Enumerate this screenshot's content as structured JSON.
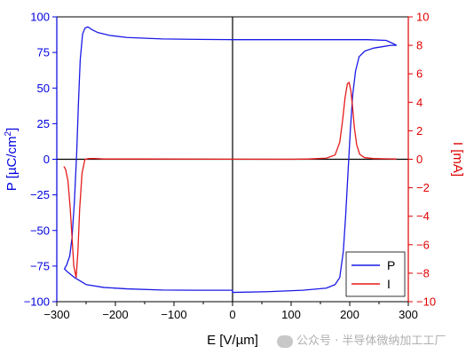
{
  "chart_data": {
    "type": "line",
    "x_axis": {
      "label": "E [V/µm]",
      "range": [
        -300,
        300
      ],
      "ticks": [
        -300,
        -200,
        -100,
        0,
        100,
        200,
        300
      ],
      "tick_labels": [
        "−300",
        "−200",
        "−100",
        "0",
        "100",
        "200",
        "300"
      ]
    },
    "y_left": {
      "label_main": "P [µC/cm",
      "label_sup": "2",
      "label_end": "]",
      "range": [
        -100,
        100
      ],
      "ticks": [
        -100,
        -75,
        -50,
        -25,
        0,
        25,
        50,
        75,
        100
      ],
      "tick_labels": [
        "−100",
        "−75",
        "−50",
        "−25",
        "0",
        "25",
        "50",
        "75",
        "100"
      ],
      "color": "#0000e0"
    },
    "y_right": {
      "label": "I [mA]",
      "range": [
        -10,
        10
      ],
      "ticks": [
        -10,
        -8,
        -6,
        -4,
        -2,
        0,
        2,
        4,
        6,
        8,
        10
      ],
      "tick_labels": [
        "−10",
        "−8",
        "−6",
        "−4",
        "−2",
        "0",
        "2",
        "4",
        "6",
        "8",
        "10"
      ],
      "color": "#e00000"
    },
    "series": [
      {
        "name": "P",
        "axis": "left",
        "color": "#1a1ae6",
        "points": [
          [
            280,
            80
          ],
          [
            270,
            82
          ],
          [
            262,
            83.5
          ],
          [
            230,
            84
          ],
          [
            180,
            84
          ],
          [
            120,
            84
          ],
          [
            60,
            84
          ],
          [
            0,
            84
          ],
          [
            -60,
            84.2
          ],
          [
            -120,
            84.5
          ],
          [
            -180,
            85.5
          ],
          [
            -210,
            87
          ],
          [
            -230,
            89
          ],
          [
            -240,
            91
          ],
          [
            -247,
            93
          ],
          [
            -252,
            92
          ],
          [
            -256,
            88
          ],
          [
            -260,
            70
          ],
          [
            -263,
            40
          ],
          [
            -266,
            5
          ],
          [
            -270,
            -30
          ],
          [
            -274,
            -55
          ],
          [
            -278,
            -68
          ],
          [
            -283,
            -74
          ],
          [
            -287,
            -77
          ],
          [
            -282,
            -79
          ],
          [
            -270,
            -83
          ],
          [
            -250,
            -88
          ],
          [
            -220,
            -90
          ],
          [
            -180,
            -91
          ],
          [
            -120,
            -91.8
          ],
          [
            -60,
            -92
          ],
          [
            0,
            -92
          ],
          [
            0,
            -93.5
          ],
          [
            60,
            -93
          ],
          [
            120,
            -92
          ],
          [
            160,
            -90.5
          ],
          [
            175,
            -88
          ],
          [
            183,
            -83
          ],
          [
            189,
            -65
          ],
          [
            193,
            -40
          ],
          [
            197,
            -10
          ],
          [
            201,
            20
          ],
          [
            205,
            45
          ],
          [
            210,
            62
          ],
          [
            216,
            72
          ],
          [
            226,
            76
          ],
          [
            240,
            78
          ],
          [
            255,
            79
          ],
          [
            270,
            80
          ],
          [
            280,
            80
          ]
        ]
      },
      {
        "name": "I",
        "axis": "right",
        "color": "#e61a1a",
        "points": [
          [
            -288,
            -0.5
          ],
          [
            -285,
            -0.7
          ],
          [
            -281,
            -1.5
          ],
          [
            -277,
            -3.5
          ],
          [
            -274,
            -5.5
          ],
          [
            -271,
            -7.5
          ],
          [
            -267,
            -8.3
          ],
          [
            -264,
            -6.5
          ],
          [
            -261,
            -3.5
          ],
          [
            -257,
            -1
          ],
          [
            -252,
            0
          ],
          [
            -245,
            0.05
          ],
          [
            -235,
            0.05
          ],
          [
            -220,
            0.02
          ],
          [
            -200,
            0.02
          ],
          [
            -180,
            0.02
          ],
          [
            -160,
            0.02
          ],
          [
            100,
            0
          ],
          [
            130,
            0.02
          ],
          [
            160,
            0.08
          ],
          [
            175,
            0.3
          ],
          [
            183,
            1.2
          ],
          [
            188,
            2.8
          ],
          [
            192,
            4.3
          ],
          [
            196,
            5.3
          ],
          [
            199,
            5.4
          ],
          [
            202,
            4.8
          ],
          [
            205,
            3.6
          ],
          [
            208,
            2.2
          ],
          [
            212,
            1.0
          ],
          [
            217,
            0.35
          ],
          [
            225,
            0.12
          ],
          [
            240,
            0.05
          ],
          [
            260,
            0.03
          ],
          [
            280,
            0.02
          ]
        ]
      }
    ],
    "grid": false,
    "legend": {
      "placement": "bottom-right",
      "entries": [
        {
          "label": "P",
          "color": "#1a1ae6"
        },
        {
          "label": "I",
          "color": "#e61a1a"
        }
      ]
    }
  },
  "watermark": "公众号 · 半导体微纳加工工厂"
}
